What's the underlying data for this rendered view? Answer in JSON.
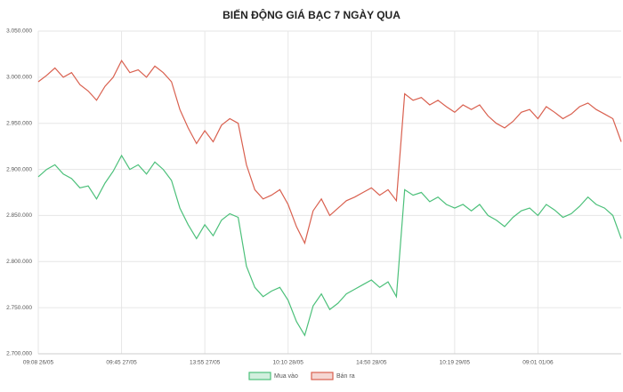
{
  "chart_data": {
    "type": "line",
    "title": "BIẾN ĐỘNG GIÁ BẠC 7 NGÀY QUA",
    "categories": [
      "09:08 26/05",
      null,
      null,
      null,
      null,
      null,
      null,
      null,
      null,
      null,
      "09:45 27/05",
      null,
      null,
      null,
      null,
      null,
      null,
      null,
      null,
      null,
      "13:55 27/05",
      null,
      null,
      null,
      null,
      null,
      null,
      null,
      null,
      null,
      "10:10 28/05",
      null,
      null,
      null,
      null,
      null,
      null,
      null,
      null,
      null,
      "14:50 28/05",
      null,
      null,
      null,
      null,
      null,
      null,
      null,
      null,
      null,
      "10:19 29/05",
      null,
      null,
      null,
      null,
      null,
      null,
      null,
      null,
      null,
      "09:01 01/06",
      null,
      null,
      null,
      null,
      null,
      null,
      null,
      null,
      null,
      null
    ],
    "series": [
      {
        "name": "Mua vào",
        "color": "#4cc07a",
        "values": [
          2892000,
          2900000,
          2905000,
          2895000,
          2890000,
          2880000,
          2882000,
          2868000,
          2885000,
          2898000,
          2915000,
          2900000,
          2905000,
          2895000,
          2908000,
          2900000,
          2888000,
          2858000,
          2840000,
          2825000,
          2840000,
          2828000,
          2845000,
          2852000,
          2848000,
          2795000,
          2772000,
          2762000,
          2768000,
          2772000,
          2758000,
          2735000,
          2720000,
          2752000,
          2765000,
          2748000,
          2755000,
          2765000,
          2770000,
          2775000,
          2780000,
          2772000,
          2778000,
          2762000,
          2878000,
          2872000,
          2875000,
          2865000,
          2870000,
          2862000,
          2858000,
          2862000,
          2855000,
          2862000,
          2850000,
          2845000,
          2838000,
          2848000,
          2855000,
          2858000,
          2850000,
          2862000,
          2856000,
          2848000,
          2852000,
          2860000,
          2870000,
          2862000,
          2858000,
          2850000,
          2825000
        ]
      },
      {
        "name": "Bán ra",
        "color": "#d9604f",
        "values": [
          2995000,
          3002000,
          3010000,
          3000000,
          3005000,
          2992000,
          2985000,
          2975000,
          2990000,
          3000000,
          3018000,
          3005000,
          3008000,
          3000000,
          3012000,
          3005000,
          2995000,
          2965000,
          2945000,
          2928000,
          2942000,
          2930000,
          2948000,
          2955000,
          2950000,
          2905000,
          2878000,
          2868000,
          2872000,
          2878000,
          2862000,
          2838000,
          2820000,
          2855000,
          2868000,
          2850000,
          2858000,
          2866000,
          2870000,
          2875000,
          2880000,
          2872000,
          2878000,
          2866000,
          2982000,
          2975000,
          2978000,
          2970000,
          2975000,
          2968000,
          2962000,
          2970000,
          2965000,
          2970000,
          2958000,
          2950000,
          2945000,
          2952000,
          2962000,
          2965000,
          2955000,
          2968000,
          2962000,
          2955000,
          2960000,
          2968000,
          2972000,
          2965000,
          2960000,
          2955000,
          2930000
        ]
      }
    ],
    "ylim": [
      2700000,
      3050000
    ],
    "yticks": [
      {
        "value": 2700000,
        "label": "2.700.000"
      },
      {
        "value": 2750000,
        "label": "2.750.000"
      },
      {
        "value": 2800000,
        "label": "2.800.000"
      },
      {
        "value": 2850000,
        "label": "2.850.000"
      },
      {
        "value": 2900000,
        "label": "2.900.000"
      },
      {
        "value": 2950000,
        "label": "2.950.000"
      },
      {
        "value": 3000000,
        "label": "3.000.000"
      },
      {
        "value": 3050000,
        "label": "3.050.000"
      }
    ],
    "grid": true
  }
}
